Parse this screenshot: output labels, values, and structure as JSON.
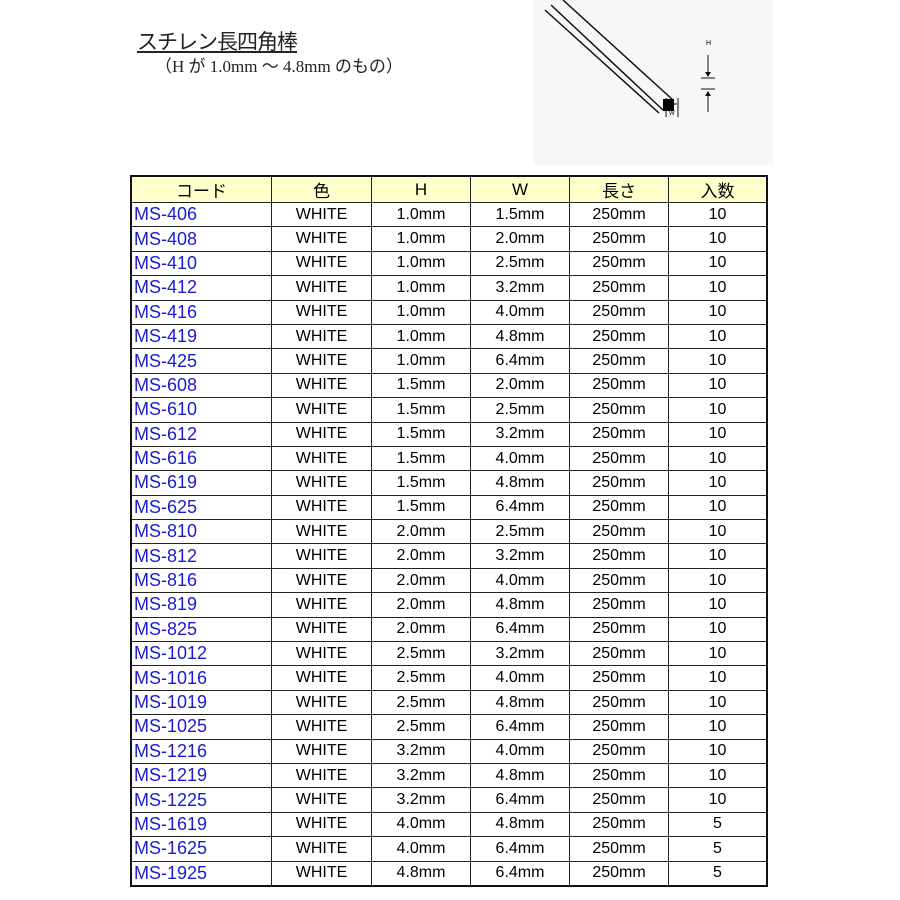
{
  "title": "スチレン長四角棒",
  "subtitle": "（H が 1.0mm 〜 4.8mm のもの）",
  "diagram": {
    "h_label": "H",
    "w_label": "W"
  },
  "colors": {
    "header_bg": "#ffffcc",
    "code_text": "#1a1ad0"
  },
  "table": {
    "headers": [
      "コード",
      "色",
      "H",
      "W",
      "長さ",
      "入数"
    ],
    "rows": [
      [
        "MS-406",
        "WHITE",
        "1.0mm",
        "1.5mm",
        "250mm",
        "10"
      ],
      [
        "MS-408",
        "WHITE",
        "1.0mm",
        "2.0mm",
        "250mm",
        "10"
      ],
      [
        "MS-410",
        "WHITE",
        "1.0mm",
        "2.5mm",
        "250mm",
        "10"
      ],
      [
        "MS-412",
        "WHITE",
        "1.0mm",
        "3.2mm",
        "250mm",
        "10"
      ],
      [
        "MS-416",
        "WHITE",
        "1.0mm",
        "4.0mm",
        "250mm",
        "10"
      ],
      [
        "MS-419",
        "WHITE",
        "1.0mm",
        "4.8mm",
        "250mm",
        "10"
      ],
      [
        "MS-425",
        "WHITE",
        "1.0mm",
        "6.4mm",
        "250mm",
        "10"
      ],
      [
        "MS-608",
        "WHITE",
        "1.5mm",
        "2.0mm",
        "250mm",
        "10"
      ],
      [
        "MS-610",
        "WHITE",
        "1.5mm",
        "2.5mm",
        "250mm",
        "10"
      ],
      [
        "MS-612",
        "WHITE",
        "1.5mm",
        "3.2mm",
        "250mm",
        "10"
      ],
      [
        "MS-616",
        "WHITE",
        "1.5mm",
        "4.0mm",
        "250mm",
        "10"
      ],
      [
        "MS-619",
        "WHITE",
        "1.5mm",
        "4.8mm",
        "250mm",
        "10"
      ],
      [
        "MS-625",
        "WHITE",
        "1.5mm",
        "6.4mm",
        "250mm",
        "10"
      ],
      [
        "MS-810",
        "WHITE",
        "2.0mm",
        "2.5mm",
        "250mm",
        "10"
      ],
      [
        "MS-812",
        "WHITE",
        "2.0mm",
        "3.2mm",
        "250mm",
        "10"
      ],
      [
        "MS-816",
        "WHITE",
        "2.0mm",
        "4.0mm",
        "250mm",
        "10"
      ],
      [
        "MS-819",
        "WHITE",
        "2.0mm",
        "4.8mm",
        "250mm",
        "10"
      ],
      [
        "MS-825",
        "WHITE",
        "2.0mm",
        "6.4mm",
        "250mm",
        "10"
      ],
      [
        "MS-1012",
        "WHITE",
        "2.5mm",
        "3.2mm",
        "250mm",
        "10"
      ],
      [
        "MS-1016",
        "WHITE",
        "2.5mm",
        "4.0mm",
        "250mm",
        "10"
      ],
      [
        "MS-1019",
        "WHITE",
        "2.5mm",
        "4.8mm",
        "250mm",
        "10"
      ],
      [
        "MS-1025",
        "WHITE",
        "2.5mm",
        "6.4mm",
        "250mm",
        "10"
      ],
      [
        "MS-1216",
        "WHITE",
        "3.2mm",
        "4.0mm",
        "250mm",
        "10"
      ],
      [
        "MS-1219",
        "WHITE",
        "3.2mm",
        "4.8mm",
        "250mm",
        "10"
      ],
      [
        "MS-1225",
        "WHITE",
        "3.2mm",
        "6.4mm",
        "250mm",
        "10"
      ],
      [
        "MS-1619",
        "WHITE",
        "4.0mm",
        "4.8mm",
        "250mm",
        "5"
      ],
      [
        "MS-1625",
        "WHITE",
        "4.0mm",
        "6.4mm",
        "250mm",
        "5"
      ],
      [
        "MS-1925",
        "WHITE",
        "4.8mm",
        "6.4mm",
        "250mm",
        "5"
      ]
    ]
  }
}
